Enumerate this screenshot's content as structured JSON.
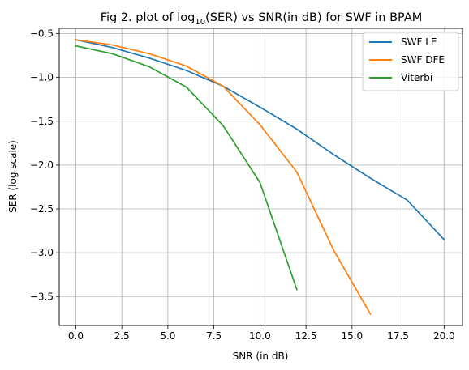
{
  "chart_data": {
    "type": "line",
    "title": {
      "prefix": "Fig 2. plot of log",
      "subscript": "10",
      "suffix": "(SER) vs SNR(in dB) for SWF in BPAM"
    },
    "xlabel": "SNR (in dB)",
    "ylabel": "SER (log scale)",
    "xlim": [
      -0.9,
      21.0
    ],
    "ylim": [
      -3.83,
      -0.44
    ],
    "x_ticks": [
      0.0,
      2.5,
      5.0,
      7.5,
      10.0,
      12.5,
      15.0,
      17.5,
      20.0
    ],
    "x_tick_labels": [
      "0.0",
      "2.5",
      "5.0",
      "7.5",
      "10.0",
      "12.5",
      "15.0",
      "17.5",
      "20.0"
    ],
    "y_ticks": [
      -0.5,
      -1.0,
      -1.5,
      -2.0,
      -2.5,
      -3.0,
      -3.5
    ],
    "y_tick_labels": [
      "−0.5",
      "−1.0",
      "−1.5",
      "−2.0",
      "−2.5",
      "−3.0",
      "−3.5"
    ],
    "grid": true,
    "legend_position": "top-right",
    "series": [
      {
        "name": "SWF LE",
        "color": "#1f77b4",
        "x": [
          0,
          2,
          4,
          6,
          8,
          10,
          12,
          14,
          16,
          18,
          20
        ],
        "y": [
          -0.57,
          -0.66,
          -0.78,
          -0.92,
          -1.1,
          -1.34,
          -1.59,
          -1.88,
          -2.15,
          -2.4,
          -2.85
        ]
      },
      {
        "name": "SWF DFE",
        "color": "#ff7f0e",
        "x": [
          0,
          2,
          4,
          6,
          8,
          10,
          12,
          14,
          16
        ],
        "y": [
          -0.57,
          -0.63,
          -0.73,
          -0.87,
          -1.1,
          -1.54,
          -2.08,
          -2.97,
          -3.7
        ]
      },
      {
        "name": "Viterbi",
        "color": "#2ca02c",
        "x": [
          0,
          2,
          4,
          6,
          8,
          10,
          12
        ],
        "y": [
          -0.64,
          -0.73,
          -0.88,
          -1.11,
          -1.55,
          -2.2,
          -3.42
        ]
      }
    ]
  }
}
